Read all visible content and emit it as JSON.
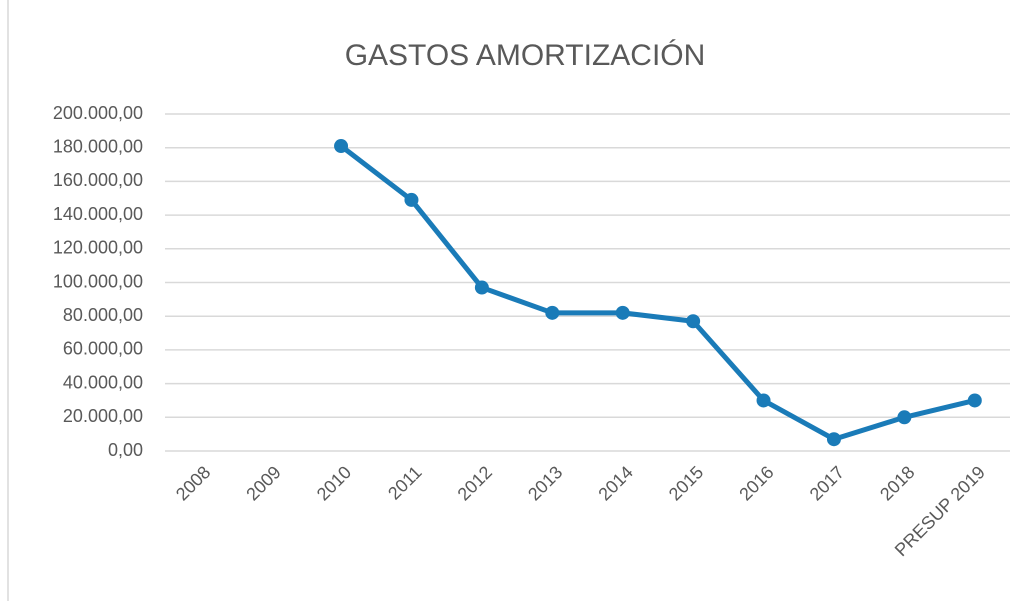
{
  "chart_data": {
    "type": "line",
    "title": "GASTOS AMORTIZACIÓN",
    "categories": [
      "2008",
      "2009",
      "2010",
      "2011",
      "2012",
      "2013",
      "2014",
      "2015",
      "2016",
      "2017",
      "2018",
      "PRESUP 2019"
    ],
    "series": [
      {
        "name": "GASTOS AMORTIZACIÓN",
        "color": "#1a7bb8",
        "values": [
          null,
          null,
          181000,
          149000,
          97000,
          82000,
          82000,
          77000,
          30000,
          7000,
          20000,
          30000
        ]
      }
    ],
    "ylim": [
      0,
      200000
    ],
    "yticks": [
      {
        "value": 0,
        "label": "0,00"
      },
      {
        "value": 20000,
        "label": "20.000,00"
      },
      {
        "value": 40000,
        "label": "40.000,00"
      },
      {
        "value": 60000,
        "label": "60.000,00"
      },
      {
        "value": 80000,
        "label": "80.000,00"
      },
      {
        "value": 100000,
        "label": "100.000,00"
      },
      {
        "value": 120000,
        "label": "120.000,00"
      },
      {
        "value": 140000,
        "label": "140.000,00"
      },
      {
        "value": 160000,
        "label": "160.000,00"
      },
      {
        "value": 180000,
        "label": "180.000,00"
      },
      {
        "value": 200000,
        "label": "200.000,00"
      }
    ],
    "grid": true
  }
}
